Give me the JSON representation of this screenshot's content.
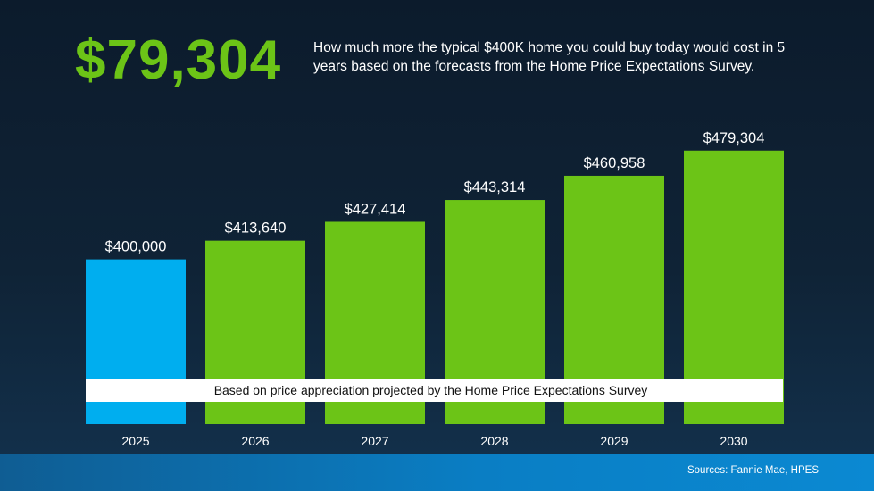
{
  "headline": {
    "amount": "$79,304"
  },
  "description": "How much more the typical $400K home you could buy today would cost in 5 years based on the forecasts from the Home Price Expectations Survey.",
  "colors": {
    "baseline_bar": "#00aeef",
    "forecast_bar": "#6cc417",
    "headline": "#6cc417"
  },
  "chart_data": {
    "type": "bar",
    "title": "",
    "xlabel": "",
    "ylabel": "",
    "categories": [
      "2025",
      "2026",
      "2027",
      "2028",
      "2029",
      "2030"
    ],
    "values": [
      400000,
      413640,
      427414,
      443314,
      460958,
      479304
    ],
    "value_labels": [
      "$400,000",
      "$413,640",
      "$427,414",
      "$443,314",
      "$460,958",
      "$479,304"
    ],
    "highlight_index": 0,
    "annotation": "Based on price appreciation projected by the Home Price Expectations Survey",
    "ylim": [
      280000,
      485000
    ],
    "grid": false
  },
  "footer": {
    "sources": "Sources: Fannie Mae, HPES"
  }
}
